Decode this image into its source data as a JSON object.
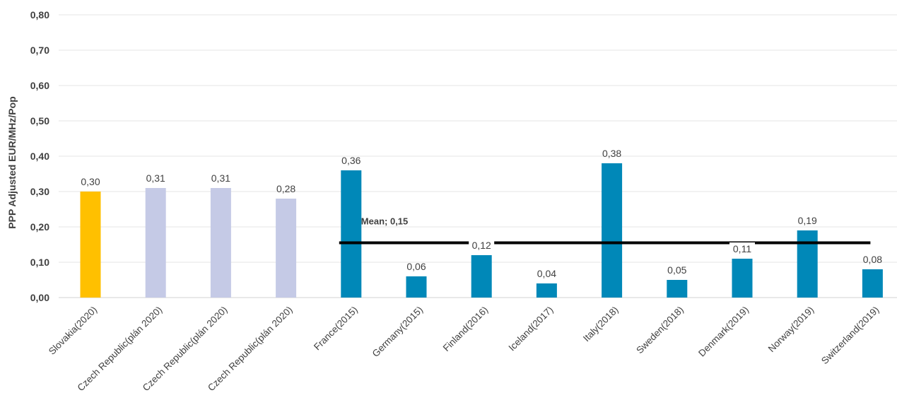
{
  "chart_data": {
    "type": "bar",
    "title": "",
    "xlabel": "",
    "ylabel": "PPP Adjusted EUR/MHz/Pop",
    "ylim": [
      0,
      0.8
    ],
    "yticks": [
      "0,00",
      "0,10",
      "0,20",
      "0,30",
      "0,40",
      "0,50",
      "0,60",
      "0,70",
      "0,80"
    ],
    "grid": true,
    "categories": [
      "Slovakia(2020)",
      "Czech Republic(plán 2020)",
      "Czech Republic(plán 2020)",
      "Czech Republic(plán 2020)",
      "France(2015)",
      "Germany(2015)",
      "Finland(2016)",
      "Iceland(2017)",
      "Italy(2018)",
      "Sweden(2018)",
      "Denmark(2019)",
      "Norway(2019)",
      "Switzerland(2019)"
    ],
    "values": [
      0.3,
      0.31,
      0.31,
      0.28,
      0.36,
      0.06,
      0.12,
      0.04,
      0.38,
      0.05,
      0.11,
      0.19,
      0.08
    ],
    "value_labels": [
      "0,30",
      "0,31",
      "0,31",
      "0,28",
      "0,36",
      "0,06",
      "0,12",
      "0,04",
      "0,38",
      "0,05",
      "0,11",
      "0,19",
      "0,08"
    ],
    "bar_colors": [
      "#FFC000",
      "#C5CAE6",
      "#C5CAE6",
      "#C5CAE6",
      "#0088B8",
      "#0088B8",
      "#0088B8",
      "#0088B8",
      "#0088B8",
      "#0088B8",
      "#0088B8",
      "#0088B8",
      "#0088B8"
    ],
    "mean": {
      "label": "Mean; 0,15",
      "value": 0.155,
      "color": "#000000",
      "from_category_index": 4,
      "to_category_index": 12
    }
  }
}
